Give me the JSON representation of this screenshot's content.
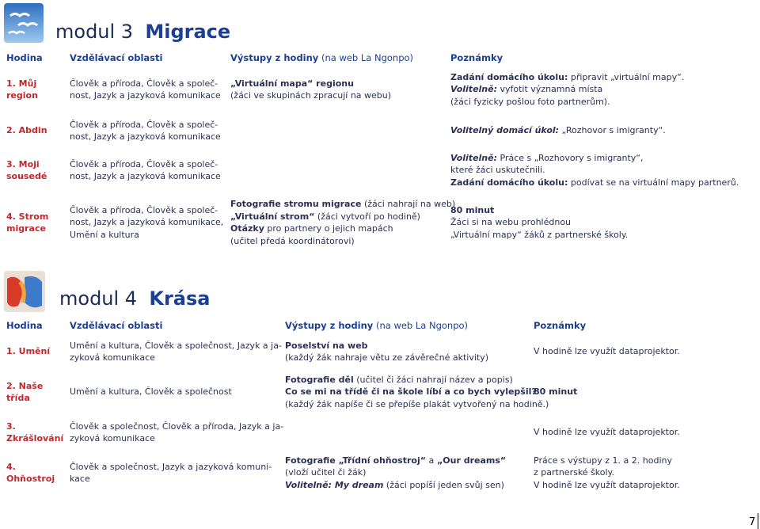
{
  "module3": {
    "label": "modul 3",
    "title": "Migrace",
    "header": [
      "Hodina",
      "Vzdělávací oblasti",
      "Výstupy z hodiny",
      " (na web La Ngonpo)",
      "Poznámky"
    ],
    "rows": [
      {
        "hour": [
          "1. Můj",
          "region"
        ],
        "areas": [
          [
            "Člověk a příroda, Člověk a společ-"
          ],
          [
            "nost, Jazyk a jazyková komunikace"
          ]
        ],
        "outputs": [
          [
            "„Virtuální mapa“ regionu"
          ],
          [
            "(žáci ve skupinách zpracují na webu)"
          ]
        ],
        "notes": [
          [
            "Zadání domácího úkolu:",
            " připravit „virtuální mapy“."
          ],
          [
            "Volitelně:",
            " vyfotit významná místa"
          ],
          [
            "(žáci fyzicky pošlou foto partnerům)."
          ]
        ]
      },
      {
        "hour": [
          "2. Abdin"
        ],
        "areas": [
          [
            "Člověk a příroda, Člověk a společ-"
          ],
          [
            "nost, Jazyk a jazyková komunikace"
          ]
        ],
        "notes": [
          [
            "Volitelný domácí úkol:",
            " „Rozhovor s imigranty“."
          ]
        ]
      },
      {
        "hour": [
          "3. Moji",
          "sousedé"
        ],
        "areas": [
          [
            "Člověk a příroda, Člověk a společ-"
          ],
          [
            "nost, Jazyk a jazyková komunikace"
          ]
        ],
        "notes": [
          [
            "Volitelně:",
            " Práce s „Rozhovory s imigranty“,"
          ],
          [
            "které žáci uskutečnili."
          ],
          [
            "Zadání domácího úkolu:",
            " podívat se na virtuální mapy partnerů."
          ]
        ]
      },
      {
        "hour": [
          "4. Strom",
          "migrace"
        ],
        "areas": [
          [
            "Člověk a příroda, Člověk a společ-"
          ],
          [
            "nost, Jazyk a jazyková komunikace,"
          ],
          [
            "Umění a kultura"
          ]
        ],
        "outputs": [
          [
            "Fotografie stromu migrace",
            " (žáci nahrají na web)"
          ],
          [
            "„Virtuální strom“",
            " (žáci vytvoří po hodině)"
          ],
          [
            "Otázky",
            " pro partnery o jejich mapách"
          ],
          [
            "(učitel předá koordinátorovi)"
          ]
        ],
        "notes": [
          [
            "80 minut"
          ],
          [
            "Žáci si na webu prohlédnou"
          ],
          [
            "„Virtuální mapy“ žáků z partnerské školy."
          ]
        ]
      }
    ]
  },
  "module4": {
    "label": "modul 4",
    "title": "Krása",
    "header": [
      "Hodina",
      "Vzdělávací oblasti",
      "Výstupy z hodiny",
      " (na web La Ngonpo)",
      "Poznámky"
    ],
    "rows": [
      {
        "hour": [
          "1. Umění"
        ],
        "areas": [
          [
            "Umění a kultura, Člověk a společnost, Jazyk a ja-"
          ],
          [
            "zyková komunikace"
          ]
        ],
        "outputs": [
          [
            "Poselství na web"
          ],
          [
            "(každý žák nahraje větu ze závěrečné aktivity)"
          ]
        ],
        "notes": [
          [
            "V hodině lze využít dataprojektor."
          ]
        ]
      },
      {
        "hour": [
          "2. Naše",
          "třída"
        ],
        "areas": [
          [
            "Umění a kultura, Člověk a společnost"
          ]
        ],
        "outputs": [
          [
            "Fotografie děl",
            " (učitel či žáci nahrají název a popis)"
          ],
          [
            "Co se mi na třídě či na škole líbí a co bych vylepšil?"
          ],
          [
            "(každý žák napíše či se přepíše plakát vytvořený na hodině.)"
          ]
        ],
        "notes": [
          [
            "80 minut"
          ]
        ]
      },
      {
        "hour": [
          "3.",
          "Zkrášlování"
        ],
        "areas": [
          [
            "Člověk a společnost, Člověk a příroda, Jazyk a ja-"
          ],
          [
            "zyková komunikace"
          ]
        ],
        "notes": [
          [
            "V hodině lze využít dataprojektor."
          ]
        ]
      },
      {
        "hour": [
          "4.",
          "Ohňostroj"
        ],
        "areas": [
          [
            "Člověk a společnost, Jazyk a jazyková komuni-"
          ],
          [
            "kace"
          ]
        ],
        "outputs": [
          [
            "Fotografie",
            " „Třídní ohňostroj“",
            " a",
            " „Our dreams“"
          ],
          [
            "(vloží učitel či žák)"
          ],
          [
            "Volitelně:",
            " My dream",
            " (žáci popíší jeden svůj sen)"
          ]
        ],
        "notes": [
          [
            "Práce s výstupy z 1. a 2. hodiny"
          ],
          [
            "z partnerské školy."
          ],
          [
            "V hodině lze využít dataprojektor."
          ]
        ]
      }
    ]
  },
  "page_number": "7"
}
